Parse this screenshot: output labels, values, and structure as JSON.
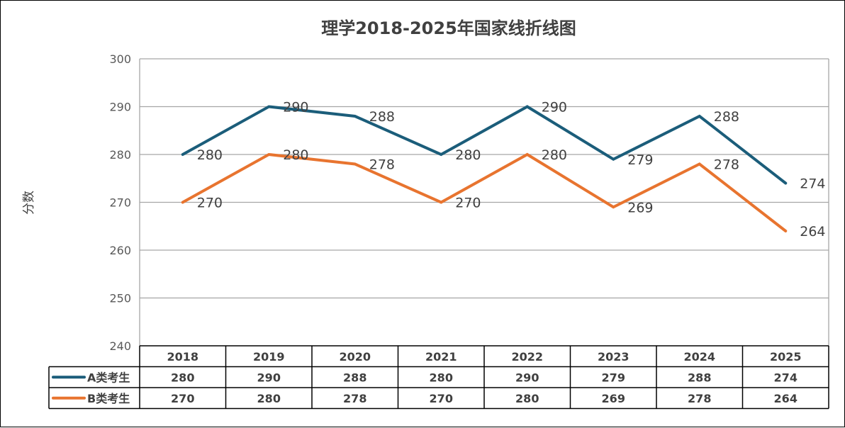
{
  "chart_data": {
    "type": "line",
    "title": "理学2018-2025年国家线折线图",
    "ylabel": "分数",
    "xlabel": "",
    "categories": [
      "2018",
      "2019",
      "2020",
      "2021",
      "2022",
      "2023",
      "2024",
      "2025"
    ],
    "ylim": [
      240,
      300
    ],
    "yticks": [
      240,
      250,
      260,
      270,
      280,
      290,
      300
    ],
    "grid": true,
    "legend": "data table",
    "series": [
      {
        "name": "A类考生",
        "color": "#1b5d7a",
        "values": [
          280,
          290,
          288,
          280,
          290,
          279,
          288,
          274
        ]
      },
      {
        "name": "B类考生",
        "color": "#e8742f",
        "values": [
          270,
          280,
          278,
          270,
          280,
          269,
          278,
          264
        ]
      }
    ]
  }
}
